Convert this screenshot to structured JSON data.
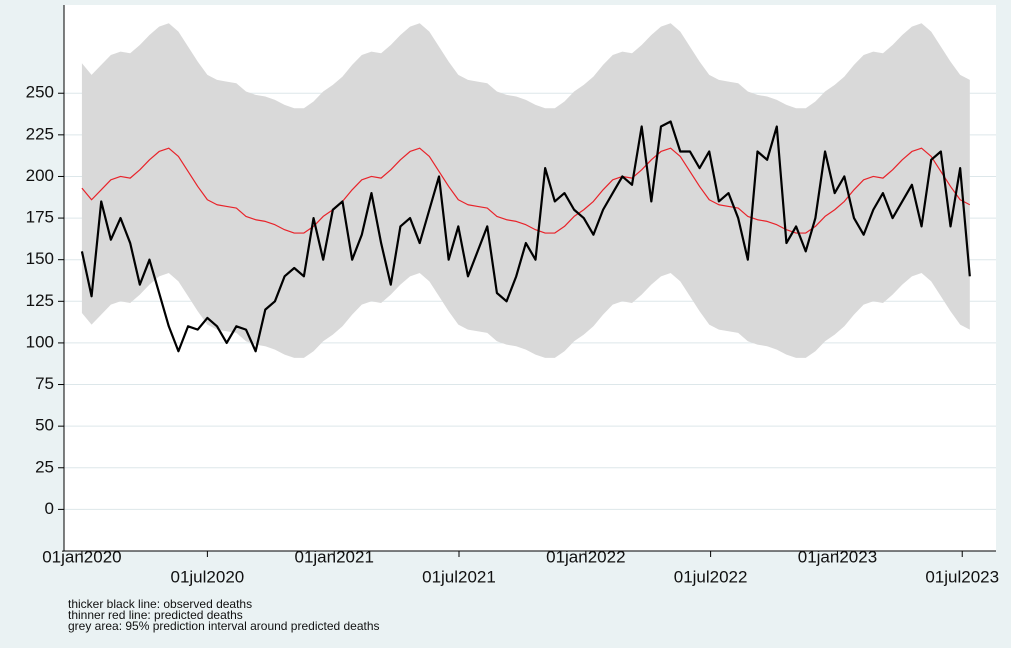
{
  "chart_data": {
    "type": "line",
    "x": [
      "2020-01-01",
      "2020-01-15",
      "2020-01-29",
      "2020-02-12",
      "2020-02-26",
      "2020-03-11",
      "2020-03-25",
      "2020-04-08",
      "2020-04-22",
      "2020-05-06",
      "2020-05-20",
      "2020-06-03",
      "2020-06-17",
      "2020-07-01",
      "2020-07-15",
      "2020-07-29",
      "2020-08-12",
      "2020-08-26",
      "2020-09-09",
      "2020-09-23",
      "2020-10-07",
      "2020-10-21",
      "2020-11-04",
      "2020-11-18",
      "2020-12-02",
      "2020-12-16",
      "2020-12-30",
      "2021-01-13",
      "2021-01-27",
      "2021-02-10",
      "2021-02-24",
      "2021-03-10",
      "2021-03-24",
      "2021-04-07",
      "2021-04-21",
      "2021-05-05",
      "2021-05-19",
      "2021-06-02",
      "2021-06-16",
      "2021-06-30",
      "2021-07-14",
      "2021-07-28",
      "2021-08-11",
      "2021-08-25",
      "2021-09-08",
      "2021-09-22",
      "2021-10-06",
      "2021-10-20",
      "2021-11-03",
      "2021-11-17",
      "2021-12-01",
      "2021-12-15",
      "2021-12-29",
      "2022-01-12",
      "2022-01-26",
      "2022-02-09",
      "2022-02-23",
      "2022-03-09",
      "2022-03-23",
      "2022-04-06",
      "2022-04-20",
      "2022-05-04",
      "2022-05-18",
      "2022-06-01",
      "2022-06-15",
      "2022-06-29",
      "2022-07-13",
      "2022-07-27",
      "2022-08-10",
      "2022-08-24",
      "2022-09-07",
      "2022-09-21",
      "2022-10-05",
      "2022-10-19",
      "2022-11-02",
      "2022-11-16",
      "2022-11-30",
      "2022-12-14",
      "2022-12-28",
      "2023-01-11",
      "2023-01-25",
      "2023-02-08",
      "2023-02-22",
      "2023-03-08",
      "2023-03-22",
      "2023-04-05",
      "2023-04-19",
      "2023-05-03",
      "2023-05-17",
      "2023-05-31",
      "2023-06-14",
      "2023-06-28",
      "2023-07-12"
    ],
    "band": {
      "color": "#d9d9d9",
      "upper": [
        268,
        261,
        267,
        273,
        275,
        274,
        279,
        285,
        290,
        292,
        287,
        278,
        269,
        261,
        258,
        257,
        256,
        251,
        249,
        248,
        246,
        243,
        241,
        241,
        245,
        251,
        255,
        260,
        267,
        273,
        275,
        274,
        279,
        285,
        290,
        292,
        287,
        278,
        269,
        261,
        258,
        257,
        256,
        251,
        249,
        248,
        246,
        243,
        241,
        241,
        245,
        251,
        255,
        260,
        267,
        273,
        275,
        274,
        279,
        285,
        290,
        292,
        287,
        278,
        269,
        261,
        258,
        257,
        256,
        251,
        249,
        248,
        246,
        243,
        241,
        241,
        245,
        251,
        255,
        260,
        267,
        273,
        275,
        274,
        279,
        285,
        290,
        292,
        287,
        278,
        269,
        261,
        258
      ],
      "lower": [
        118,
        111,
        117,
        123,
        125,
        124,
        129,
        135,
        140,
        142,
        137,
        128,
        119,
        111,
        108,
        107,
        106,
        101,
        99,
        98,
        96,
        93,
        91,
        91,
        95,
        101,
        105,
        110,
        117,
        123,
        125,
        124,
        129,
        135,
        140,
        142,
        137,
        128,
        119,
        111,
        108,
        107,
        106,
        101,
        99,
        98,
        96,
        93,
        91,
        91,
        95,
        101,
        105,
        110,
        117,
        123,
        125,
        124,
        129,
        135,
        140,
        142,
        137,
        128,
        119,
        111,
        108,
        107,
        106,
        101,
        99,
        98,
        96,
        93,
        91,
        91,
        95,
        101,
        105,
        110,
        117,
        123,
        125,
        124,
        129,
        135,
        140,
        142,
        137,
        128,
        119,
        111,
        108
      ]
    },
    "series": [
      {
        "color": "#e8232a",
        "width": 1.2,
        "values": [
          193,
          186,
          192,
          198,
          200,
          199,
          204,
          210,
          215,
          217,
          212,
          203,
          194,
          186,
          183,
          182,
          181,
          176,
          174,
          173,
          171,
          168,
          166,
          166,
          170,
          176,
          180,
          185,
          192,
          198,
          200,
          199,
          204,
          210,
          215,
          217,
          212,
          203,
          194,
          186,
          183,
          182,
          181,
          176,
          174,
          173,
          171,
          168,
          166,
          166,
          170,
          176,
          180,
          185,
          192,
          198,
          200,
          199,
          204,
          210,
          215,
          217,
          212,
          203,
          194,
          186,
          183,
          182,
          181,
          176,
          174,
          173,
          171,
          168,
          166,
          166,
          170,
          176,
          180,
          185,
          192,
          198,
          200,
          199,
          204,
          210,
          215,
          217,
          212,
          203,
          194,
          186,
          183
        ]
      },
      {
        "color": "#000000",
        "width": 2.2,
        "values": [
          155,
          128,
          185,
          162,
          175,
          160,
          135,
          150,
          130,
          110,
          95,
          110,
          108,
          115,
          110,
          100,
          110,
          108,
          95,
          120,
          125,
          140,
          145,
          140,
          175,
          150,
          180,
          185,
          150,
          165,
          190,
          160,
          135,
          170,
          175,
          160,
          180,
          200,
          150,
          170,
          140,
          155,
          170,
          130,
          125,
          140,
          160,
          150,
          205,
          185,
          190,
          180,
          175,
          165,
          180,
          190,
          200,
          195,
          230,
          185,
          230,
          233,
          215,
          215,
          205,
          215,
          185,
          190,
          175,
          150,
          215,
          210,
          230,
          160,
          170,
          155,
          175,
          215,
          190,
          200,
          175,
          165,
          180,
          190,
          175,
          185,
          195,
          170,
          210,
          215,
          170,
          205,
          140
        ]
      }
    ],
    "xlim": [
      "2019-12-06",
      "2023-08-19"
    ],
    "xticks": [
      {
        "value": "2020-01-01",
        "label": "01jan2020"
      },
      {
        "value": "2020-07-01",
        "label": "01jul2020"
      },
      {
        "value": "2021-01-01",
        "label": "01jan2021"
      },
      {
        "value": "2021-07-01",
        "label": "01jul2021"
      },
      {
        "value": "2022-01-01",
        "label": "01jan2022"
      },
      {
        "value": "2022-07-01",
        "label": "01jul2022"
      },
      {
        "value": "2023-01-01",
        "label": "01jan2023"
      },
      {
        "value": "2023-07-01",
        "label": "01jul2023"
      }
    ],
    "ylim": [
      -25,
      303
    ],
    "yticks": [
      0,
      25,
      50,
      75,
      100,
      125,
      150,
      175,
      200,
      225,
      250
    ],
    "grid": true,
    "annotations": [
      "thicker black line: observed deaths",
      "thinner red line: predicted deaths",
      "grey area: 95% prediction interval around predicted deaths"
    ]
  }
}
